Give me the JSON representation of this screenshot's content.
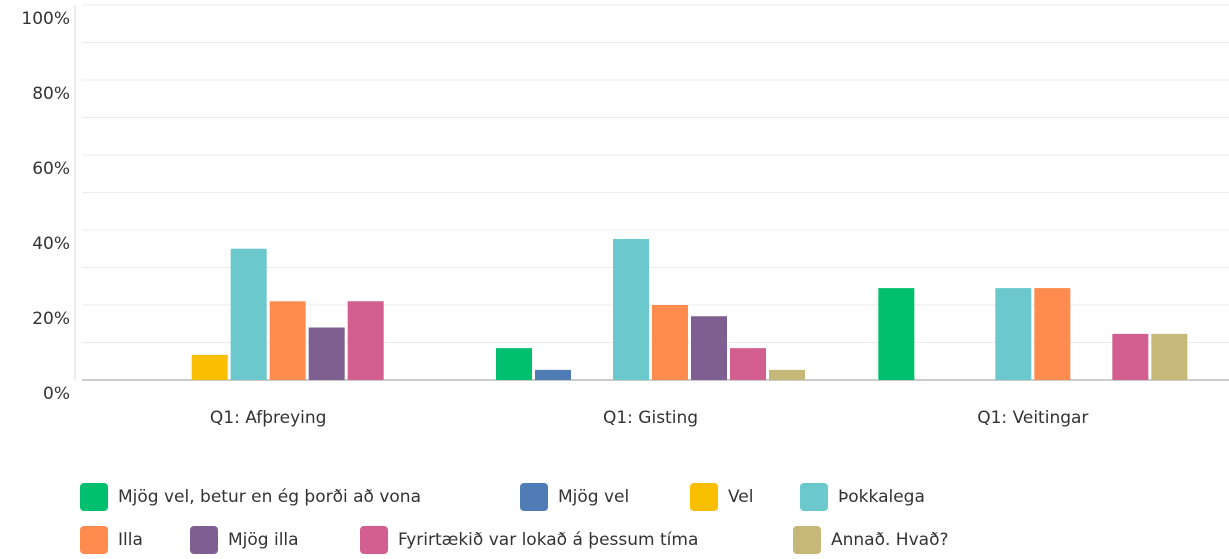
{
  "chart_data": {
    "type": "bar",
    "categories": [
      "Q1: Afþreying",
      "Q1: Gisting",
      "Q1: Veitingar"
    ],
    "series": [
      {
        "name": "Mjög vel, betur en ég þorði að vona",
        "color": "#00bf6f",
        "values": [
          0,
          8.5,
          24.5
        ]
      },
      {
        "name": "Mjög vel",
        "color": "#507cb6",
        "values": [
          0,
          2.7,
          0
        ]
      },
      {
        "name": "Vel",
        "color": "#f9be00",
        "values": [
          6.7,
          0,
          0
        ]
      },
      {
        "name": "Þokkalega",
        "color": "#6bc8cd",
        "values": [
          35,
          37.6,
          24.5
        ]
      },
      {
        "name": "Illa",
        "color": "#ff8b4f",
        "values": [
          21,
          20,
          24.5
        ]
      },
      {
        "name": "Mjög illa",
        "color": "#7f5f92",
        "values": [
          14,
          17,
          0
        ]
      },
      {
        "name": "Fyrirtækið var lokað á þessum tíma",
        "color": "#d25f90",
        "values": [
          21,
          8.5,
          12.3
        ]
      },
      {
        "name": "Annað. Hvað?",
        "color": "#c6b879",
        "values": [
          0,
          2.7,
          12.3
        ]
      }
    ],
    "ylim": [
      0,
      100
    ],
    "yticks": [
      {
        "value": 0,
        "label": "0%"
      },
      {
        "value": 20,
        "label": "20%"
      },
      {
        "value": 40,
        "label": "40%"
      },
      {
        "value": 60,
        "label": "60%"
      },
      {
        "value": 80,
        "label": "80%"
      },
      {
        "value": 100,
        "label": "100%"
      }
    ],
    "minor_yticks": [
      10,
      30,
      50,
      70,
      90
    ],
    "grid": true
  }
}
